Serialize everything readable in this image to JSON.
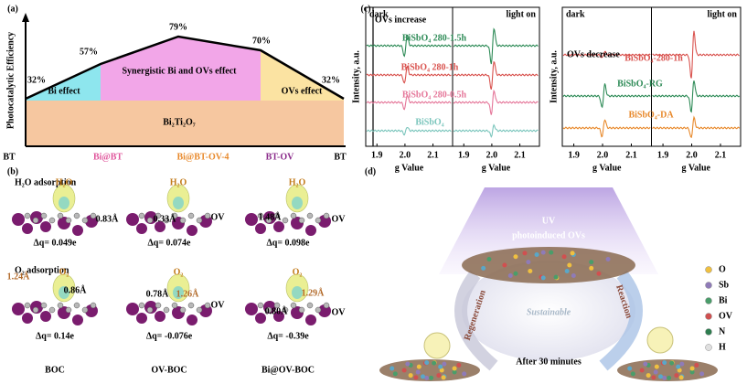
{
  "panel_a": {
    "label": "(a)",
    "y_axis": "Photocatalytic Efficiency",
    "efficiencies": [
      "32%",
      "57%",
      "79%",
      "70%",
      "32%"
    ],
    "regions": [
      "Bi effect",
      "Synergistic Bi and OVs effect",
      "OVs effect"
    ],
    "base": "Bi₂Ti₂O₇",
    "samples": [
      "BT",
      "Bi@BT",
      "Bi@BT-OV-4",
      "BT-OV",
      "BT"
    ]
  },
  "panel_b": {
    "label": "(b)",
    "sections": [
      {
        "title": "H₂O adsorption",
        "adsorbates": [
          "H₂O",
          "H₂O",
          "H₂O"
        ],
        "distances": [
          "0.83Å",
          "0.33Å",
          "1.48Å"
        ],
        "sites": [
          "OV",
          "OV"
        ],
        "charges": [
          "Δq= 0.049e",
          "Δq= 0.074e",
          "Δq= 0.098e"
        ]
      },
      {
        "title": "O₂ adsorption",
        "adsorbates": [
          "O₂",
          "O₂",
          "O₂"
        ],
        "distances": [
          "1.24Å",
          "0.86Å",
          "1.26Å",
          "0.78Å",
          "1.29Å",
          "0.80Å"
        ],
        "sites": [
          "OV",
          "OV"
        ],
        "charges": [
          "Δq= 0.14e",
          "Δq= -0.076e",
          "Δq= -0.39e"
        ]
      }
    ],
    "samples": [
      "BOC",
      "OV-BOC",
      "Bi@OV-BOC"
    ]
  },
  "panel_c": {
    "label": "(c)",
    "y_axis": "Intensity, a.u.",
    "x_axis": "g Value",
    "ticks": [
      "1.9",
      "2.0",
      "2.1"
    ],
    "left": {
      "dark": "dark",
      "light": "light on",
      "note": "OVs increase",
      "traces": [
        "BiSbO₄ 280-1.5h",
        "BiSbO₄ 280-1h",
        "BiSbO₄ 280-0.5h",
        "BiSbO₄"
      ]
    },
    "right": {
      "dark": "dark",
      "light": "light on",
      "note": "OVs decrease",
      "traces": [
        "BiSbO₄-280-1h",
        "BiSbO₄-RG",
        "BiSbO₄-DA"
      ]
    }
  },
  "panel_d": {
    "label": "(d)",
    "light": "UV",
    "caption": "photoinduced OVs",
    "center": "Sustainable",
    "left": "Regeneration",
    "right": "Reaction",
    "bottom": "After 30 minutes",
    "legend": [
      "O",
      "Sb",
      "Bi",
      "OV",
      "N",
      "H"
    ]
  }
}
